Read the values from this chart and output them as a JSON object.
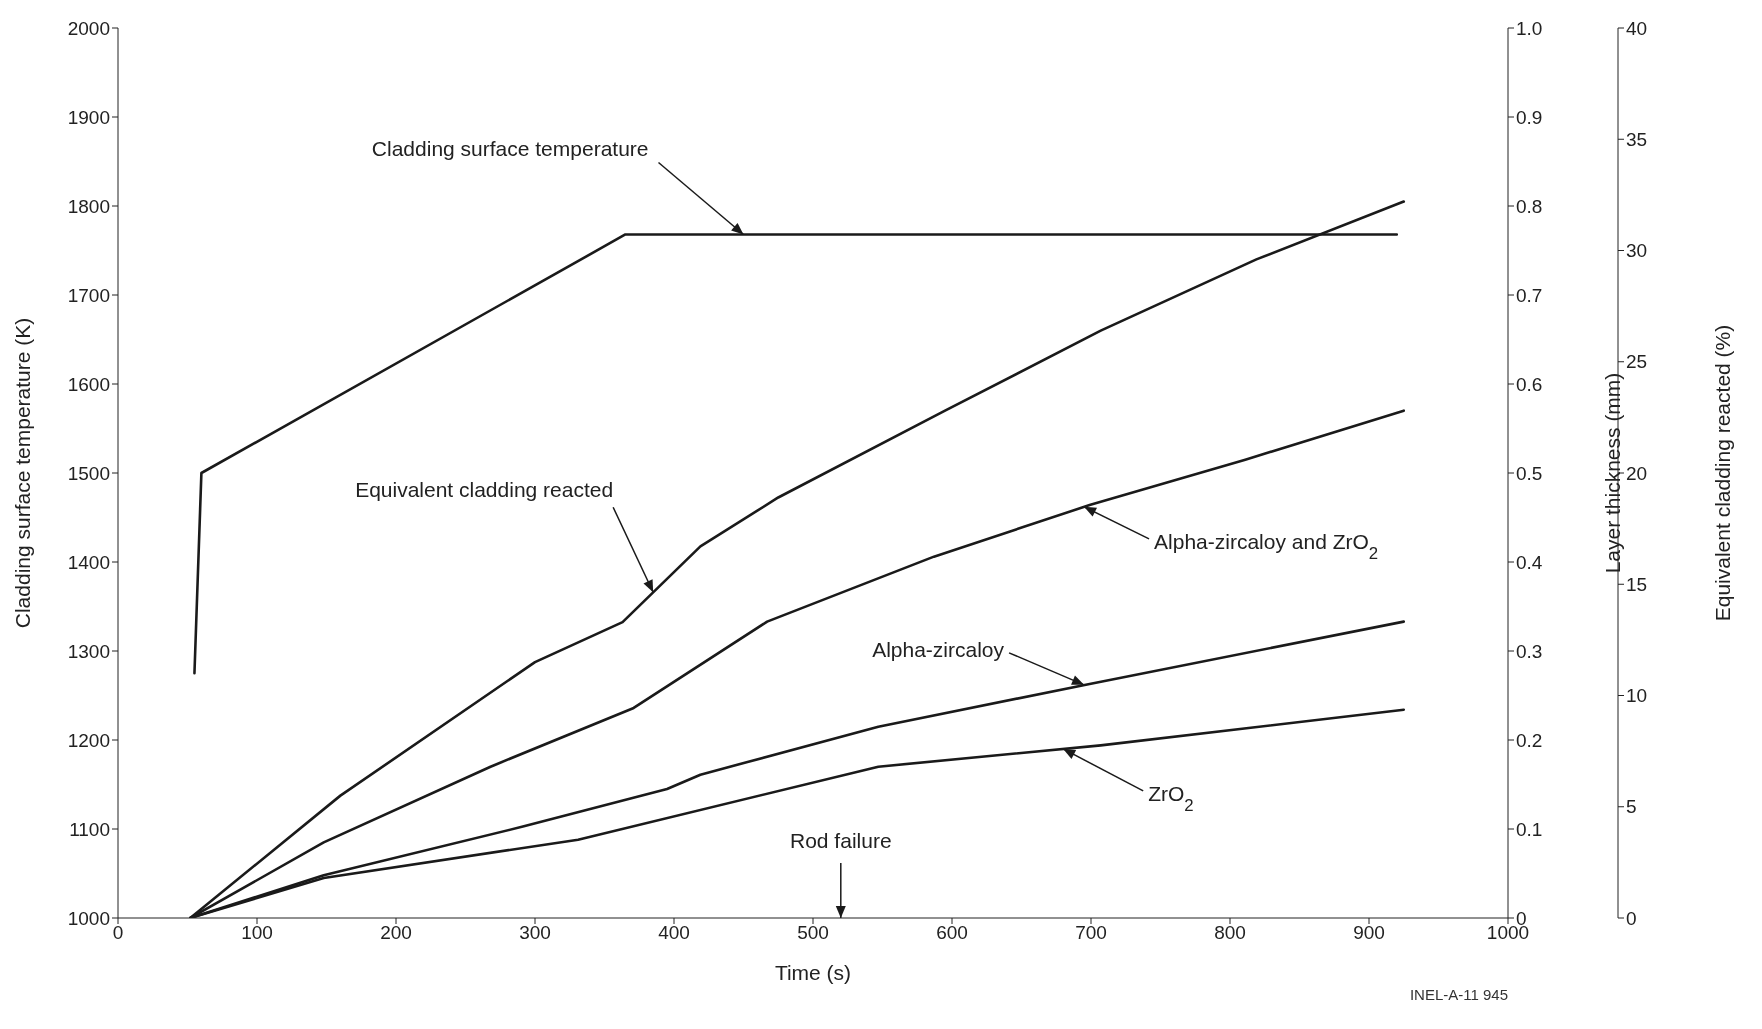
{
  "chart_data": {
    "type": "line",
    "xlabel": "Time (s)",
    "ylabel": "Cladding surface temperature (K)",
    "y2label": "Layer thickness (mm)",
    "y3label": "Equivalent cladding reacted (%)",
    "xlim": [
      0,
      1000
    ],
    "xticks": [
      0,
      100,
      200,
      300,
      400,
      500,
      600,
      700,
      800,
      900,
      1000
    ],
    "ylim": [
      1000,
      2000
    ],
    "yticks": [
      1000,
      1100,
      1200,
      1300,
      1400,
      1500,
      1600,
      1700,
      1800,
      1900,
      2000
    ],
    "y2lim": [
      0,
      1
    ],
    "y2ticks": [
      0,
      0.1,
      0.2,
      0.3,
      0.4,
      0.5,
      0.6,
      0.7,
      0.8,
      0.9,
      {
        "value": 1,
        "label": "1.0"
      }
    ],
    "y3lim": [
      0,
      40
    ],
    "y3ticks": [
      0,
      5,
      10,
      15,
      20,
      25,
      30,
      35,
      40
    ],
    "grid": false,
    "marker": "none",
    "line_style": "solid",
    "series": [
      {
        "color": "#1a1a1a",
        "x": [
          55,
          60,
          365,
          920
        ],
        "values": [
          1275,
          1500,
          1768,
          1768
        ]
      },
      {
        "color": "#1a1a1a",
        "axis": "y3",
        "x": [
          52,
          160,
          300,
          363,
          419,
          475,
          595,
          707,
          819,
          925
        ],
        "values": [
          0,
          5.5,
          11.5,
          13.3,
          16.7,
          18.9,
          22.8,
          26.4,
          29.6,
          32.2
        ]
      },
      {
        "color": "#1a1a1a",
        "axis": "y2",
        "x": [
          52,
          148,
          268,
          371,
          467,
          587,
          699,
          811,
          925
        ],
        "values": [
          0,
          0.085,
          0.17,
          0.236,
          0.333,
          0.406,
          0.464,
          0.515,
          0.57
        ]
      },
      {
        "color": "#1a1a1a",
        "axis": "y2",
        "x": [
          52,
          148,
          292,
          395,
          419,
          547,
          699,
          925
        ],
        "values": [
          0,
          0.048,
          0.103,
          0.145,
          0.161,
          0.215,
          0.263,
          0.333
        ]
      },
      {
        "color": "#1a1a1a",
        "axis": "y2",
        "x": [
          52,
          148,
          331,
          547,
          707,
          925
        ],
        "values": [
          0,
          0.045,
          0.088,
          0.17,
          0.194,
          0.234
        ]
      }
    ],
    "annotations": [
      {
        "text": "Cladding surface temperature",
        "x": 450,
        "y": 1768
      },
      {
        "text": "Equivalent cladding reacted",
        "x": 385,
        "y": 1366
      },
      {
        "text": "Alpha-zircaloy and ZrO$_{2}$",
        "x": 695,
        "y": 1462
      },
      {
        "text": "Alpha-zircaloy",
        "x": 695,
        "y": 1262
      },
      {
        "text": "ZrO$_{2}$",
        "x": 680,
        "y": 1190
      },
      "Rod failure",
      "INEL-A-11 945"
    ]
  }
}
